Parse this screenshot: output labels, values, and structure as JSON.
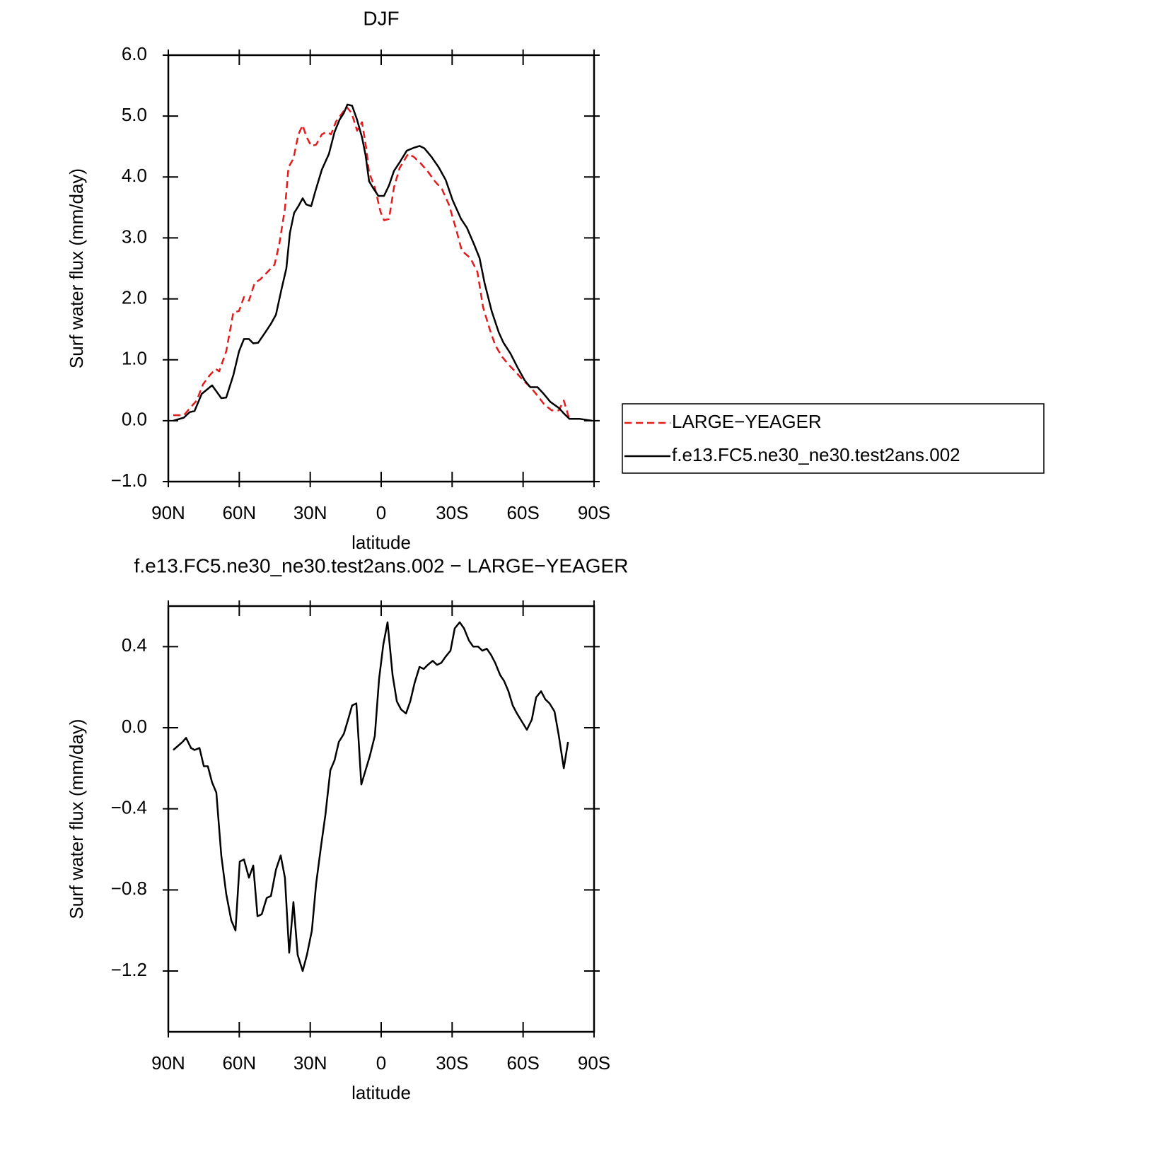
{
  "chart_data": [
    {
      "type": "line",
      "title": "DJF",
      "xlabel": "latitude",
      "ylabel": "Surf water flux (mm/day)",
      "xlim": [
        90,
        -90
      ],
      "xticks": [
        {
          "value": 90,
          "label": "90N"
        },
        {
          "value": 60,
          "label": "60N"
        },
        {
          "value": 30,
          "label": "30N"
        },
        0,
        {
          "value": -30,
          "label": "30S"
        },
        {
          "value": -60,
          "label": "60S"
        },
        {
          "value": -90,
          "label": "90S"
        }
      ],
      "ylim": [
        -1,
        6
      ],
      "yticks": [
        {
          "value": -1,
          "label": "−1.0"
        },
        {
          "value": 0,
          "label": "0.0"
        },
        {
          "value": 1,
          "label": "1.0"
        },
        {
          "value": 2,
          "label": "2.0"
        },
        {
          "value": 3,
          "label": "3.0"
        },
        {
          "value": 4,
          "label": "4.0"
        },
        {
          "value": 5,
          "label": "5.0"
        },
        {
          "value": 6,
          "label": "6.0"
        }
      ],
      "legend": "outside-right",
      "series": [
        {
          "name": "LARGE−YEAGER",
          "color": "#e41a1c",
          "dashed": true,
          "x": [
            87.9,
            83.4,
            81.0,
            78.0,
            75.3,
            72.4,
            70.0,
            68.5,
            65.5,
            62.5,
            60.1,
            58.0,
            55.9,
            53.5,
            51.1,
            48.1,
            45.1,
            43.1,
            40.7,
            39.2,
            37.1,
            35.0,
            33.2,
            31.7,
            29.6,
            27.5,
            25.1,
            23.0,
            21.2,
            19.1,
            17.0,
            14.6,
            12.5,
            10.2,
            8.1,
            6.3,
            5.1,
            2.7,
            0.3,
            -1.2,
            -3.3,
            -5.4,
            -7.8,
            -11.4,
            -13.8,
            -16.8,
            -19.7,
            -22.7,
            -25.7,
            -28.7,
            -31.7,
            -34.1,
            -37.7,
            -40.7,
            -43.1,
            -45.8,
            -48.2,
            -51.1,
            -54.1,
            -57.1,
            -60.1,
            -63.1,
            -66.1,
            -69.1,
            -72.1,
            -75.1,
            -77.2,
            -79.6
          ],
          "values": [
            0.09,
            0.09,
            0.2,
            0.33,
            0.6,
            0.75,
            0.85,
            0.81,
            1.14,
            1.78,
            1.8,
            2.03,
            1.97,
            2.26,
            2.32,
            2.44,
            2.56,
            2.9,
            3.48,
            4.16,
            4.3,
            4.7,
            4.85,
            4.67,
            4.51,
            4.53,
            4.7,
            4.74,
            4.7,
            4.91,
            5.02,
            5.15,
            5.05,
            4.76,
            4.9,
            4.47,
            4.07,
            3.83,
            3.43,
            3.29,
            3.31,
            3.83,
            4.15,
            4.38,
            4.33,
            4.22,
            4.09,
            3.93,
            3.8,
            3.54,
            3.14,
            2.79,
            2.67,
            2.44,
            1.86,
            1.51,
            1.24,
            1.05,
            0.91,
            0.79,
            0.66,
            0.55,
            0.41,
            0.26,
            0.17,
            0.17,
            0.33,
            0.02
          ]
        },
        {
          "name": "f.e13.FC5.ne30_ne30.test2ans.002",
          "color": "#000000",
          "dashed": false,
          "x": [
            87.9,
            83.4,
            81.0,
            78.9,
            75.9,
            71.5,
            67.6,
            65.5,
            62.5,
            60.1,
            58.0,
            55.9,
            54.1,
            52.0,
            49.0,
            46.6,
            44.5,
            42.2,
            40.1,
            38.6,
            36.8,
            35.0,
            33.2,
            31.7,
            29.6,
            27.8,
            25.1,
            22.1,
            19.7,
            17.6,
            15.8,
            14.3,
            12.3,
            10.2,
            8.1,
            6.6,
            5.1,
            3.6,
            1.2,
            -1.2,
            -3.3,
            -5.4,
            -7.8,
            -10.8,
            -13.8,
            -16.2,
            -18.3,
            -21.3,
            -24.3,
            -27.3,
            -30.2,
            -33.8,
            -36.2,
            -39.2,
            -41.6,
            -43.7,
            -46.7,
            -49.7,
            -51.7,
            -54.7,
            -57.7,
            -60.7,
            -63.1,
            -66.1,
            -68.5,
            -71.5,
            -75.1,
            -77.2,
            -79.6,
            -84.0,
            -89.1
          ],
          "values": [
            0.0,
            0.05,
            0.14,
            0.16,
            0.44,
            0.58,
            0.37,
            0.38,
            0.75,
            1.14,
            1.34,
            1.34,
            1.27,
            1.28,
            1.45,
            1.59,
            1.74,
            2.15,
            2.5,
            3.08,
            3.41,
            3.52,
            3.65,
            3.55,
            3.52,
            3.77,
            4.12,
            4.38,
            4.74,
            4.94,
            5.05,
            5.19,
            5.17,
            4.94,
            4.65,
            4.36,
            3.93,
            3.83,
            3.69,
            3.69,
            3.86,
            4.1,
            4.24,
            4.43,
            4.48,
            4.51,
            4.47,
            4.33,
            4.16,
            3.95,
            3.62,
            3.31,
            3.17,
            2.9,
            2.67,
            2.26,
            1.8,
            1.45,
            1.28,
            1.1,
            0.87,
            0.66,
            0.55,
            0.55,
            0.45,
            0.31,
            0.21,
            0.12,
            0.03,
            0.03,
            0.0
          ]
        }
      ]
    },
    {
      "type": "line",
      "title": "f.e13.FC5.ne30_ne30.test2ans.002 − LARGE−YEAGER",
      "xlabel": "latitude",
      "ylabel": "Surf water flux (mm/day)",
      "xlim": [
        90,
        -90
      ],
      "xticks": [
        {
          "value": 90,
          "label": "90N"
        },
        {
          "value": 60,
          "label": "60N"
        },
        {
          "value": 30,
          "label": "30N"
        },
        0,
        {
          "value": -30,
          "label": "30S"
        },
        {
          "value": -60,
          "label": "60S"
        },
        {
          "value": -90,
          "label": "90S"
        }
      ],
      "ylim": [
        -1.5,
        0.6
      ],
      "yticks": [
        {
          "value": -1.2,
          "label": "−1.2"
        },
        {
          "value": -0.8,
          "label": "−0.8"
        },
        {
          "value": -0.4,
          "label": "−0.4"
        },
        {
          "value": 0,
          "label": "0.0"
        },
        0.4
      ],
      "color": "#000000",
      "x": [
        87.9,
        84.0,
        82.5,
        80.4,
        78.9,
        76.8,
        75.0,
        73.3,
        71.5,
        69.7,
        67.6,
        65.5,
        63.4,
        61.6,
        59.8,
        58.0,
        55.9,
        54.1,
        52.3,
        50.5,
        48.4,
        46.6,
        44.5,
        42.5,
        40.7,
        38.9,
        37.1,
        35.3,
        33.2,
        31.4,
        29.3,
        27.5,
        25.4,
        23.6,
        21.5,
        19.7,
        17.9,
        15.8,
        14.0,
        12.3,
        10.5,
        8.4,
        6.6,
        4.8,
        2.7,
        0.9,
        -0.9,
        -2.7,
        -4.8,
        -6.6,
        -8.4,
        -10.5,
        -12.3,
        -14.1,
        -16.2,
        -18.0,
        -19.7,
        -21.8,
        -23.6,
        -25.4,
        -27.2,
        -29.3,
        -31.1,
        -33.2,
        -35.0,
        -37.1,
        -38.9,
        -41.0,
        -42.8,
        -44.6,
        -46.4,
        -48.2,
        -50.3,
        -52.0,
        -53.8,
        -55.6,
        -57.4,
        -59.5,
        -61.6,
        -63.7,
        -65.5,
        -67.6,
        -69.4,
        -71.2,
        -73.3,
        -75.1,
        -77.2,
        -79.0
      ],
      "values": [
        -0.11,
        -0.07,
        -0.05,
        -0.1,
        -0.11,
        -0.1,
        -0.19,
        -0.19,
        -0.27,
        -0.32,
        -0.63,
        -0.82,
        -0.95,
        -1.0,
        -0.66,
        -0.65,
        -0.74,
        -0.68,
        -0.93,
        -0.92,
        -0.84,
        -0.83,
        -0.7,
        -0.63,
        -0.74,
        -1.11,
        -0.86,
        -1.12,
        -1.2,
        -1.12,
        -1.0,
        -0.77,
        -0.58,
        -0.43,
        -0.21,
        -0.16,
        -0.07,
        -0.03,
        0.04,
        0.11,
        0.12,
        -0.28,
        -0.21,
        -0.14,
        -0.04,
        0.24,
        0.41,
        0.52,
        0.26,
        0.13,
        0.09,
        0.07,
        0.13,
        0.22,
        0.3,
        0.29,
        0.31,
        0.33,
        0.31,
        0.32,
        0.35,
        0.38,
        0.49,
        0.52,
        0.49,
        0.43,
        0.4,
        0.4,
        0.38,
        0.39,
        0.36,
        0.32,
        0.26,
        0.23,
        0.18,
        0.11,
        0.07,
        0.03,
        -0.01,
        0.04,
        0.15,
        0.18,
        0.14,
        0.12,
        0.08,
        -0.04,
        -0.2,
        -0.07
      ]
    }
  ]
}
